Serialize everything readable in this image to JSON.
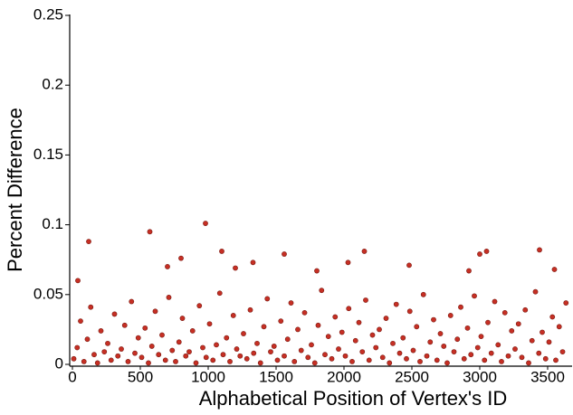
{
  "chart_data": {
    "type": "scatter",
    "x_label": "Alphabetical Position of Vertex's ID",
    "y_label": "Percent Difference",
    "color": "#c62f24",
    "xlim": [
      0,
      3680
    ],
    "xticks": [
      0,
      500,
      1000,
      1500,
      2000,
      2500,
      3000,
      3500
    ],
    "ylim": [
      0,
      0.25
    ],
    "yticks": [
      0,
      0.05,
      0.1,
      0.15,
      0.2,
      0.25
    ],
    "grid": false,
    "x": [
      120,
      570,
      980,
      1100,
      2150,
      3440,
      3050,
      1560,
      40,
      800,
      700,
      1800,
      2480,
      2920,
      3550,
      3000,
      1200,
      1330,
      2030,
      10,
      35,
      60,
      85,
      110,
      135,
      160,
      185,
      210,
      235,
      260,
      285,
      310,
      335,
      360,
      385,
      410,
      435,
      460,
      485,
      510,
      535,
      560,
      585,
      610,
      635,
      660,
      685,
      710,
      735,
      760,
      785,
      810,
      835,
      860,
      885,
      910,
      935,
      960,
      985,
      1010,
      1035,
      1060,
      1085,
      1110,
      1135,
      1160,
      1185,
      1210,
      1235,
      1260,
      1285,
      1310,
      1335,
      1360,
      1385,
      1410,
      1435,
      1460,
      1485,
      1510,
      1535,
      1560,
      1585,
      1610,
      1635,
      1660,
      1685,
      1710,
      1735,
      1760,
      1785,
      1810,
      1835,
      1860,
      1885,
      1910,
      1935,
      1960,
      1985,
      2010,
      2035,
      2060,
      2085,
      2110,
      2135,
      2160,
      2185,
      2210,
      2235,
      2260,
      2285,
      2310,
      2335,
      2360,
      2385,
      2410,
      2435,
      2460,
      2485,
      2510,
      2535,
      2560,
      2585,
      2610,
      2635,
      2660,
      2685,
      2710,
      2735,
      2760,
      2785,
      2810,
      2835,
      2860,
      2885,
      2910,
      2935,
      2960,
      2985,
      3010,
      3035,
      3060,
      3085,
      3110,
      3135,
      3160,
      3185,
      3210,
      3235,
      3260,
      3285,
      3310,
      3335,
      3360,
      3385,
      3410,
      3435,
      3460,
      3485,
      3510,
      3535,
      3560,
      3585,
      3610,
      3635
    ],
    "values": [
      0.088,
      0.095,
      0.101,
      0.081,
      0.081,
      0.082,
      0.081,
      0.079,
      0.06,
      0.076,
      0.07,
      0.067,
      0.071,
      0.067,
      0.068,
      0.079,
      0.069,
      0.073,
      0.073,
      0.004,
      0.012,
      0.031,
      0.002,
      0.018,
      0.041,
      0.007,
      0.001,
      0.024,
      0.009,
      0.015,
      0.003,
      0.036,
      0.006,
      0.011,
      0.028,
      0.002,
      0.045,
      0.008,
      0.019,
      0.005,
      0.026,
      0.001,
      0.013,
      0.038,
      0.007,
      0.021,
      0.003,
      0.048,
      0.01,
      0.002,
      0.016,
      0.033,
      0.006,
      0.009,
      0.024,
      0.001,
      0.042,
      0.012,
      0.005,
      0.029,
      0.003,
      0.014,
      0.051,
      0.007,
      0.019,
      0.002,
      0.035,
      0.011,
      0.006,
      0.022,
      0.004,
      0.039,
      0.008,
      0.015,
      0.001,
      0.027,
      0.047,
      0.009,
      0.013,
      0.003,
      0.031,
      0.006,
      0.018,
      0.044,
      0.002,
      0.025,
      0.01,
      0.037,
      0.005,
      0.014,
      0.001,
      0.028,
      0.053,
      0.007,
      0.02,
      0.004,
      0.034,
      0.011,
      0.023,
      0.006,
      0.04,
      0.002,
      0.017,
      0.03,
      0.009,
      0.046,
      0.003,
      0.021,
      0.012,
      0.025,
      0.005,
      0.033,
      0.001,
      0.015,
      0.043,
      0.008,
      0.019,
      0.004,
      0.038,
      0.01,
      0.027,
      0.002,
      0.05,
      0.006,
      0.016,
      0.032,
      0.003,
      0.022,
      0.013,
      0.001,
      0.035,
      0.009,
      0.018,
      0.041,
      0.004,
      0.026,
      0.007,
      0.049,
      0.012,
      0.02,
      0.003,
      0.03,
      0.008,
      0.045,
      0.014,
      0.002,
      0.037,
      0.006,
      0.024,
      0.011,
      0.029,
      0.005,
      0.039,
      0.001,
      0.017,
      0.052,
      0.008,
      0.023,
      0.004,
      0.016,
      0.034,
      0.003,
      0.027,
      0.009,
      0.044
    ]
  }
}
